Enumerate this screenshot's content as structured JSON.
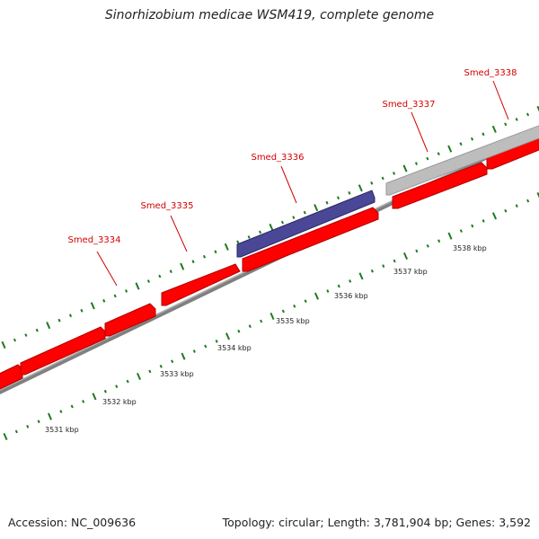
{
  "title": "Sinorhizobium medicae WSM419, complete genome",
  "footer": {
    "accession": "Accession: NC_009636",
    "stats": "Topology: circular; Length: 3,781,904 bp; Genes: 3,592"
  },
  "colors": {
    "forward_gene": "#ff0000",
    "reverse_gene": "#4b4797",
    "pseudo_gene": "#bdbdbd",
    "backbone": "#808080",
    "tick": "#1f7a1f",
    "label": "#d40000"
  },
  "genes": [
    {
      "name": "Smed_3334",
      "track": "reverse",
      "color": "reverse_gene"
    },
    {
      "name": "Smed_3335",
      "track": "forward",
      "color": "forward_gene"
    },
    {
      "name": "Smed_3336",
      "track": "reverse",
      "color": "reverse_gene"
    },
    {
      "name": "Smed_3337",
      "track": "forward",
      "color": "forward_gene"
    },
    {
      "name": "Smed_3338",
      "track": "reverse",
      "color": "pseudo_gene"
    }
  ],
  "kbp_labels": [
    "3531 kbp",
    "3532 kbp",
    "3533 kbp",
    "3534 kbp",
    "3535 kbp",
    "3536 kbp",
    "3537 kbp",
    "3538 kbp"
  ]
}
